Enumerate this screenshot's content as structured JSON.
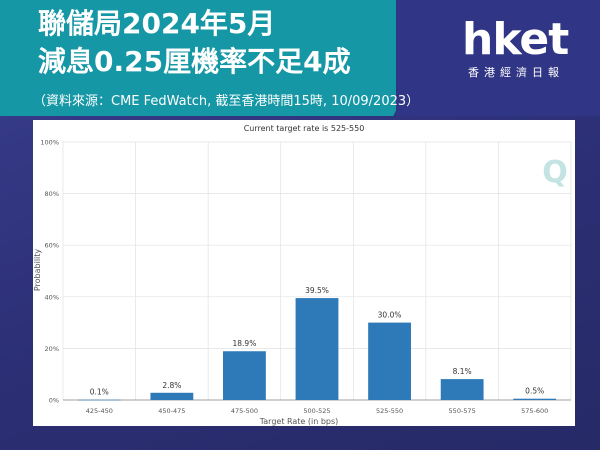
{
  "header": {
    "title_line1": "聯儲局2024年5月",
    "title_line2": "減息0.25厘機率不足4成",
    "source": "（資料來源：CME FedWatch, 截至香港時間15時, 10/09/2023）"
  },
  "logo": {
    "brand": "hket",
    "subtitle": "香港經濟日報"
  },
  "colors": {
    "banner": "#1597a6",
    "bar": "#2e7ab8",
    "background": "#2c2f75"
  },
  "chart_data": {
    "type": "bar",
    "title": "Current target rate is 525-550",
    "xlabel": "Target Rate (in bps)",
    "ylabel": "Probability",
    "categories": [
      "425-450",
      "450-475",
      "475-500",
      "500-525",
      "525-550",
      "550-575",
      "575-600"
    ],
    "values": [
      0.1,
      2.8,
      18.9,
      39.5,
      30.0,
      8.1,
      0.5
    ],
    "value_labels": [
      "0.1%",
      "2.8%",
      "18.9%",
      "39.5%",
      "30.0%",
      "8.1%",
      "0.5%"
    ],
    "ylim": [
      0,
      100
    ],
    "yticks": [
      0,
      20,
      40,
      60,
      80,
      100
    ],
    "ytick_labels": [
      "0%",
      "20%",
      "40%",
      "60%",
      "80%",
      "100%"
    ],
    "grid": true,
    "watermark": "Q"
  }
}
